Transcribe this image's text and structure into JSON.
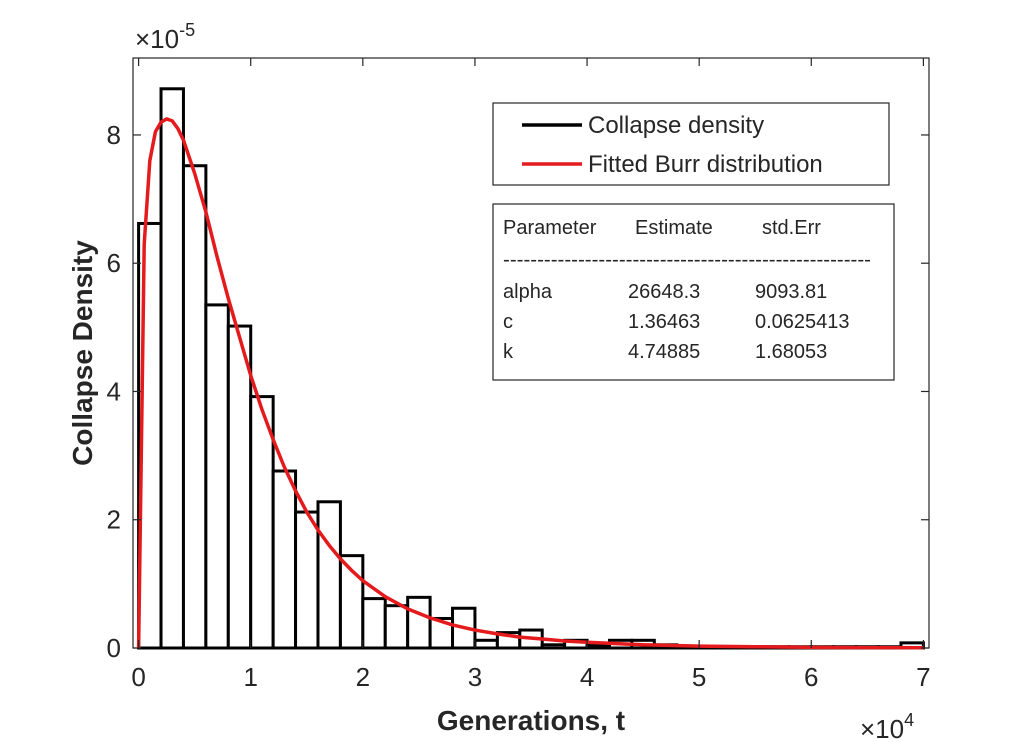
{
  "chart_data": {
    "type": "bar",
    "subtype": "histogram-with-fitted-curve",
    "xlabel": "Generations, t",
    "ylabel": "Collapse Density",
    "x_multiplier_label": "×10",
    "x_multiplier_exp": "4",
    "y_multiplier_label": "×10",
    "y_multiplier_exp": "-5",
    "xlim": [
      -0.05,
      7.05
    ],
    "ylim": [
      0,
      9.2
    ],
    "xticks": [
      0,
      1,
      2,
      3,
      4,
      5,
      6,
      7
    ],
    "xtick_labels": [
      "0",
      "1",
      "2",
      "3",
      "4",
      "5",
      "6",
      "7"
    ],
    "yticks": [
      0,
      2,
      4,
      6,
      8
    ],
    "ytick_labels": [
      "0",
      "2",
      "4",
      "6",
      "8"
    ],
    "grid": false,
    "legend_position": "top-right",
    "bin_width": 0.2,
    "bins_start": [
      0.0,
      0.2,
      0.4,
      0.6,
      0.8,
      1.0,
      1.2,
      1.4,
      1.6,
      1.8,
      2.0,
      2.2,
      2.4,
      2.6,
      2.8,
      3.0,
      3.2,
      3.4,
      3.6,
      3.8,
      4.0,
      4.2,
      4.4,
      4.6,
      4.8,
      5.0,
      5.2,
      5.4,
      5.6,
      5.8,
      6.0,
      6.2,
      6.4,
      6.6,
      6.8
    ],
    "series": [
      {
        "name": "Collapse density",
        "type": "histogram",
        "color": "#000000",
        "values": [
          6.62,
          8.72,
          7.52,
          5.35,
          5.02,
          3.92,
          2.76,
          2.12,
          2.28,
          1.44,
          0.77,
          0.66,
          0.79,
          0.46,
          0.62,
          0.12,
          0.24,
          0.28,
          0.05,
          0.12,
          0.04,
          0.12,
          0.12,
          0.05,
          0.02,
          0.02,
          0.02,
          0.02,
          0.02,
          0.02,
          0.02,
          0.02,
          0.02,
          0.02,
          0.08
        ]
      },
      {
        "name": "Fitted Burr distribution",
        "type": "line",
        "color": "#e41a1c",
        "x": [
          0.0,
          0.05,
          0.1,
          0.15,
          0.2,
          0.25,
          0.3,
          0.35,
          0.4,
          0.5,
          0.6,
          0.7,
          0.8,
          0.9,
          1.0,
          1.1,
          1.2,
          1.3,
          1.4,
          1.5,
          1.6,
          1.7,
          1.8,
          1.9,
          2.0,
          2.2,
          2.4,
          2.6,
          2.8,
          3.0,
          3.2,
          3.4,
          3.6,
          3.8,
          4.0,
          4.5,
          5.0,
          5.5,
          6.0,
          6.5,
          7.0
        ],
        "values": [
          0.0,
          6.3,
          7.6,
          8.05,
          8.2,
          8.25,
          8.22,
          8.1,
          7.92,
          7.4,
          6.8,
          6.1,
          5.45,
          4.85,
          4.25,
          3.72,
          3.25,
          2.82,
          2.45,
          2.12,
          1.84,
          1.6,
          1.39,
          1.21,
          1.05,
          0.8,
          0.61,
          0.47,
          0.36,
          0.28,
          0.22,
          0.17,
          0.14,
          0.11,
          0.09,
          0.05,
          0.03,
          0.02,
          0.01,
          0.006,
          0.004
        ]
      }
    ]
  },
  "param_table": {
    "headers": [
      "Parameter",
      "Estimate",
      "std.Err"
    ],
    "separator": "------------------------------------------------------",
    "rows": [
      [
        "alpha",
        "26648.3",
        "9093.81"
      ],
      [
        "c",
        "1.36463",
        "0.0625413"
      ],
      [
        "k",
        "4.74885",
        "1.68053"
      ]
    ]
  }
}
